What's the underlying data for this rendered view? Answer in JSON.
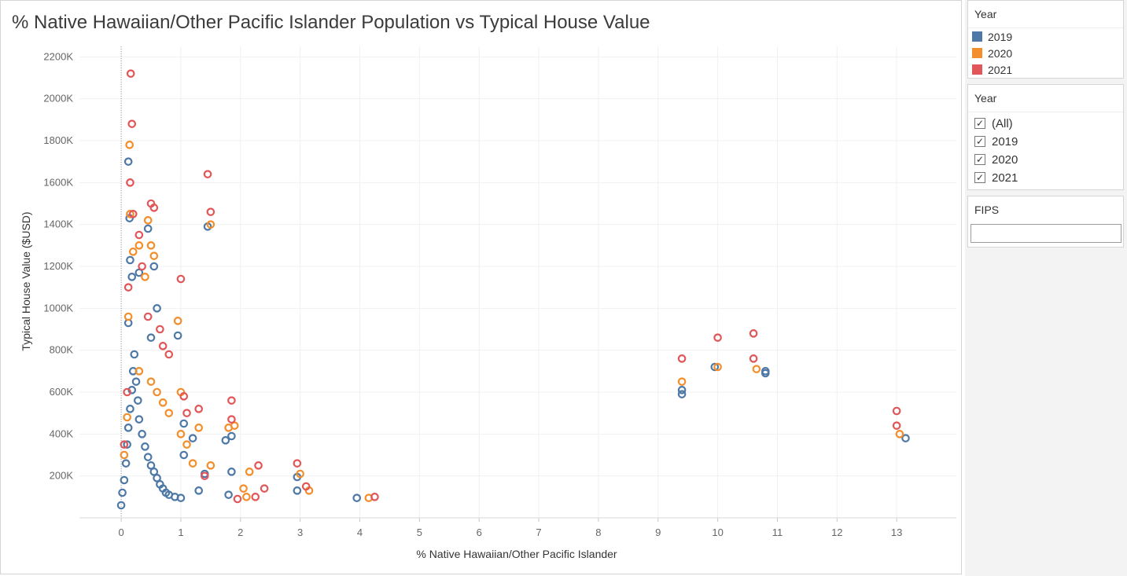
{
  "chart_data": {
    "type": "scatter",
    "title": "% Native Hawaiian/Other Pacific Islander Population vs Typical House Value",
    "xlabel": "% Native Hawaiian/Other Pacific Islander",
    "ylabel": "Typical House Value ($USD)",
    "xlim": [
      -0.7,
      14.0
    ],
    "ylim": [
      0,
      2250000
    ],
    "x_ticks": [
      0,
      1,
      2,
      3,
      4,
      5,
      6,
      7,
      8,
      9,
      10,
      11,
      12,
      13
    ],
    "x_tick_labels": [
      "0",
      "1",
      "2",
      "3",
      "4",
      "5",
      "6",
      "7",
      "8",
      "9",
      "10",
      "11",
      "12",
      "13"
    ],
    "y_ticks": [
      200000,
      400000,
      600000,
      800000,
      1000000,
      1200000,
      1400000,
      1600000,
      1800000,
      2000000,
      2200000
    ],
    "y_tick_labels": [
      "200K",
      "400K",
      "600K",
      "800K",
      "1000K",
      "1200K",
      "1400K",
      "1600K",
      "1800K",
      "2000K",
      "2200K"
    ],
    "grid": true,
    "marker": "open-circle",
    "legend_title": "Year",
    "series": [
      {
        "name": "2019",
        "color": "#4e79a7",
        "points": [
          [
            0.0,
            60000
          ],
          [
            0.02,
            120000
          ],
          [
            0.05,
            180000
          ],
          [
            0.08,
            260000
          ],
          [
            0.1,
            350000
          ],
          [
            0.12,
            430000
          ],
          [
            0.15,
            520000
          ],
          [
            0.18,
            610000
          ],
          [
            0.2,
            700000
          ],
          [
            0.22,
            780000
          ],
          [
            0.25,
            650000
          ],
          [
            0.28,
            560000
          ],
          [
            0.3,
            470000
          ],
          [
            0.35,
            400000
          ],
          [
            0.4,
            340000
          ],
          [
            0.45,
            290000
          ],
          [
            0.5,
            250000
          ],
          [
            0.55,
            220000
          ],
          [
            0.6,
            190000
          ],
          [
            0.65,
            160000
          ],
          [
            0.7,
            140000
          ],
          [
            0.75,
            120000
          ],
          [
            0.8,
            110000
          ],
          [
            0.9,
            100000
          ],
          [
            1.0,
            95000
          ],
          [
            0.12,
            930000
          ],
          [
            0.12,
            1700000
          ],
          [
            0.14,
            1430000
          ],
          [
            0.15,
            1230000
          ],
          [
            0.18,
            1150000
          ],
          [
            0.3,
            1170000
          ],
          [
            0.45,
            1380000
          ],
          [
            0.55,
            1200000
          ],
          [
            0.5,
            860000
          ],
          [
            0.6,
            1000000
          ],
          [
            0.95,
            870000
          ],
          [
            1.05,
            300000
          ],
          [
            1.05,
            450000
          ],
          [
            1.2,
            380000
          ],
          [
            1.45,
            1390000
          ],
          [
            1.4,
            210000
          ],
          [
            1.3,
            130000
          ],
          [
            1.75,
            370000
          ],
          [
            1.85,
            390000
          ],
          [
            1.85,
            220000
          ],
          [
            1.8,
            110000
          ],
          [
            2.95,
            195000
          ],
          [
            2.95,
            130000
          ],
          [
            3.95,
            95000
          ],
          [
            9.4,
            590000
          ],
          [
            9.4,
            610000
          ],
          [
            9.95,
            720000
          ],
          [
            10.8,
            690000
          ],
          [
            10.8,
            700000
          ],
          [
            13.15,
            380000
          ]
        ]
      },
      {
        "name": "2020",
        "color": "#f28e2b",
        "points": [
          [
            0.05,
            300000
          ],
          [
            0.1,
            480000
          ],
          [
            0.12,
            960000
          ],
          [
            0.14,
            1780000
          ],
          [
            0.15,
            1450000
          ],
          [
            0.2,
            1270000
          ],
          [
            0.3,
            1300000
          ],
          [
            0.4,
            1150000
          ],
          [
            0.45,
            1420000
          ],
          [
            0.5,
            1300000
          ],
          [
            0.55,
            1250000
          ],
          [
            0.3,
            700000
          ],
          [
            0.5,
            650000
          ],
          [
            0.6,
            600000
          ],
          [
            0.7,
            550000
          ],
          [
            0.8,
            500000
          ],
          [
            0.95,
            940000
          ],
          [
            1.0,
            600000
          ],
          [
            1.0,
            400000
          ],
          [
            1.1,
            350000
          ],
          [
            1.2,
            260000
          ],
          [
            1.3,
            430000
          ],
          [
            1.5,
            1400000
          ],
          [
            1.5,
            250000
          ],
          [
            1.8,
            430000
          ],
          [
            1.9,
            440000
          ],
          [
            2.05,
            140000
          ],
          [
            2.1,
            100000
          ],
          [
            2.15,
            220000
          ],
          [
            3.0,
            210000
          ],
          [
            3.15,
            130000
          ],
          [
            4.15,
            95000
          ],
          [
            9.4,
            650000
          ],
          [
            10.0,
            720000
          ],
          [
            10.65,
            710000
          ],
          [
            13.05,
            400000
          ]
        ]
      },
      {
        "name": "2021",
        "color": "#e15759",
        "points": [
          [
            0.05,
            350000
          ],
          [
            0.1,
            600000
          ],
          [
            0.12,
            1100000
          ],
          [
            0.15,
            1600000
          ],
          [
            0.16,
            2120000
          ],
          [
            0.18,
            1880000
          ],
          [
            0.2,
            1450000
          ],
          [
            0.3,
            1350000
          ],
          [
            0.35,
            1200000
          ],
          [
            0.45,
            960000
          ],
          [
            0.5,
            1500000
          ],
          [
            0.55,
            1480000
          ],
          [
            0.65,
            900000
          ],
          [
            0.7,
            820000
          ],
          [
            0.8,
            780000
          ],
          [
            1.0,
            1140000
          ],
          [
            1.05,
            580000
          ],
          [
            1.1,
            500000
          ],
          [
            1.3,
            520000
          ],
          [
            1.4,
            200000
          ],
          [
            1.45,
            1640000
          ],
          [
            1.5,
            1460000
          ],
          [
            1.85,
            560000
          ],
          [
            1.85,
            470000
          ],
          [
            1.95,
            90000
          ],
          [
            2.25,
            100000
          ],
          [
            2.3,
            250000
          ],
          [
            2.4,
            140000
          ],
          [
            2.95,
            260000
          ],
          [
            3.1,
            150000
          ],
          [
            4.25,
            100000
          ],
          [
            9.4,
            760000
          ],
          [
            10.0,
            860000
          ],
          [
            10.6,
            880000
          ],
          [
            10.6,
            760000
          ],
          [
            13.0,
            510000
          ],
          [
            13.0,
            440000
          ]
        ]
      }
    ]
  },
  "legend": {
    "title": "Year",
    "items": [
      {
        "label": "2019",
        "color": "#4e79a7"
      },
      {
        "label": "2020",
        "color": "#f28e2b"
      },
      {
        "label": "2021",
        "color": "#e15759"
      }
    ]
  },
  "year_filter": {
    "title": "Year",
    "options": [
      {
        "label": "(All)",
        "checked": true
      },
      {
        "label": "2019",
        "checked": true
      },
      {
        "label": "2020",
        "checked": true
      },
      {
        "label": "2021",
        "checked": true
      }
    ]
  },
  "fips_filter": {
    "title": "FIPS",
    "value": ""
  }
}
